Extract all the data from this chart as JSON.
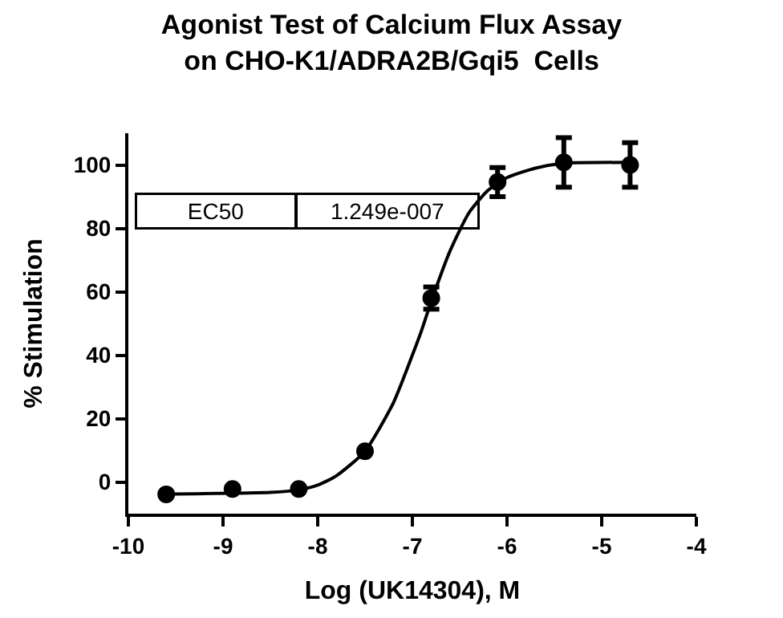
{
  "chart_data": {
    "type": "scatter",
    "title": "Agonist Test of Calcium Flux Assay\non CHO-K1/ADRA2B/Gqi5  Cells",
    "xlabel": "Log (UK14304), M",
    "ylabel": "% Stimulation",
    "annotations": [
      "EC50",
      "1.249e-007"
    ],
    "series": [
      {
        "color": "#000000",
        "marker": "circle",
        "x": [
          -9.6,
          -8.9,
          -8.2,
          -7.5,
          -6.8,
          -6.1,
          -5.4,
          -4.7
        ],
        "values": [
          -3.9,
          -2.2,
          -2.2,
          9.7,
          58,
          94.6,
          100.8,
          100
        ],
        "errors": [
          null,
          null,
          null,
          null,
          3.5,
          4.6,
          7.8,
          7
        ]
      },
      {
        "type": "line",
        "color": "#000000",
        "line_style": "solid",
        "x": [
          -9.6,
          -8.5,
          -8.2,
          -8.0,
          -7.8,
          -7.5,
          -7.2,
          -7.0,
          -6.9,
          -6.8,
          -6.6,
          -6.4,
          -6.2,
          -6.0,
          -5.7,
          -5.4,
          -4.7
        ],
        "values": [
          -3.8,
          -3.3,
          -2.5,
          -1,
          2,
          9.7,
          25,
          40,
          48,
          57,
          73,
          85,
          92,
          96,
          99,
          100.5,
          100.8
        ]
      }
    ],
    "xlim": [
      -10,
      -4
    ],
    "xticks": [
      -10,
      -9,
      -8,
      -7,
      -6,
      -5,
      -4
    ],
    "ylim": [
      -10,
      110
    ],
    "yticks": [
      0,
      20,
      40,
      60,
      80,
      100
    ],
    "legend": false
  }
}
